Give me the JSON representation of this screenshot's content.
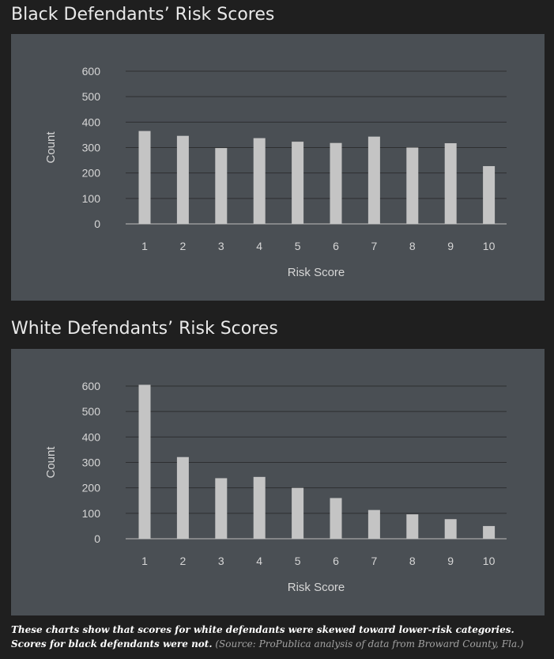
{
  "chart_data": [
    {
      "type": "bar",
      "title": "Black Defendants’ Risk Scores",
      "xlabel": "Risk Score",
      "ylabel": "Count",
      "categories": [
        "1",
        "2",
        "3",
        "4",
        "5",
        "6",
        "7",
        "8",
        "9",
        "10"
      ],
      "values": [
        365,
        346,
        298,
        337,
        323,
        318,
        343,
        300,
        317,
        227
      ],
      "ylim": [
        0,
        600
      ],
      "yticks": [
        0,
        100,
        200,
        300,
        400,
        500,
        600
      ],
      "grid": true,
      "bar_color": "#c4c4c4",
      "background_color": "#4a4f54"
    },
    {
      "type": "bar",
      "title": "White Defendants’ Risk Scores",
      "xlabel": "Risk Score",
      "ylabel": "Count",
      "categories": [
        "1",
        "2",
        "3",
        "4",
        "5",
        "6",
        "7",
        "8",
        "9",
        "10"
      ],
      "values": [
        605,
        321,
        238,
        243,
        200,
        160,
        113,
        96,
        77,
        50
      ],
      "ylim": [
        0,
        600
      ],
      "yticks": [
        0,
        100,
        200,
        300,
        400,
        500,
        600
      ],
      "grid": true,
      "bar_color": "#c4c4c4",
      "background_color": "#4a4f54"
    }
  ],
  "caption": {
    "main": "These charts show that scores for white defendants were skewed toward lower-risk categories. Scores for black defendants were not.",
    "source": "(Source: ProPublica analysis of data from Broward County, Fla.)"
  },
  "colors": {
    "page_background": "#1f1f1f",
    "panel_background": "#4a4f54",
    "bar": "#c4c4c4",
    "gridline": "#2e2f31",
    "text": "#d6d6d6"
  }
}
